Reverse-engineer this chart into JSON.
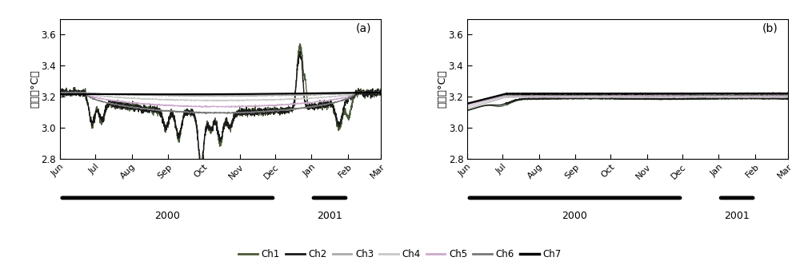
{
  "title_a": "(a)",
  "title_b": "(b)",
  "ylabel_a": "温度（°C）",
  "ylabel_b": "温度（°C）",
  "ylim": [
    2.8,
    3.7
  ],
  "yticks": [
    2.8,
    3.0,
    3.2,
    3.4,
    3.6
  ],
  "xtick_labels": [
    "Jun",
    "Jul",
    "Aug",
    "Sep",
    "Oct",
    "Nov",
    "Dec",
    "Jan",
    "Feb",
    "Mar"
  ],
  "channels": [
    "Ch1",
    "Ch2",
    "Ch3",
    "Ch4",
    "Ch5",
    "Ch6",
    "Ch7"
  ],
  "ch_colors_a": [
    "#4a5a3a",
    "#1a1a1a",
    "#aaaaaa",
    "#c8c8c8",
    "#ccaacc",
    "#787878",
    "#000000"
  ],
  "ch_colors_b": [
    "#4a5a3a",
    "#1a1a1a",
    "#aaaaaa",
    "#c8c8c8",
    "#ccaacc",
    "#787878",
    "#000000"
  ],
  "ch_linewidths": [
    0.9,
    1.0,
    0.7,
    0.7,
    0.7,
    0.8,
    1.6
  ],
  "background": "#ffffff",
  "fig_width": 10.0,
  "fig_height": 3.37
}
